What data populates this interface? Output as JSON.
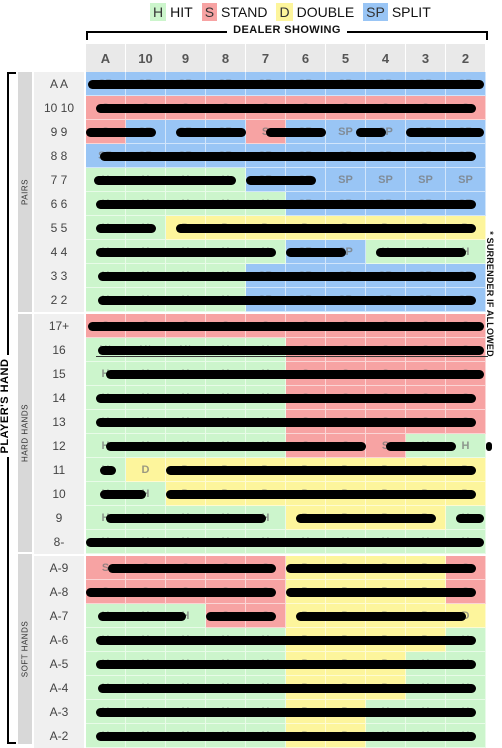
{
  "legend": [
    {
      "code": "H",
      "label": "HIT",
      "color": "#ccf5cc"
    },
    {
      "code": "S",
      "label": "STAND",
      "color": "#f7a3a3"
    },
    {
      "code": "D",
      "label": "DOUBLE",
      "color": "#fdf59c"
    },
    {
      "code": "SP",
      "label": "SPLIT",
      "color": "#99c5f5"
    }
  ],
  "dealer_title": "DEALER SHOWING",
  "dealer_cards": [
    "A",
    "10",
    "9",
    "8",
    "7",
    "6",
    "5",
    "4",
    "3",
    "2"
  ],
  "player_title": "PLAYER'S HAND",
  "groups": [
    "PAIRS",
    "HARD HANDS",
    "SOFT HANDS"
  ],
  "surrender_note": "* SURRENDER IF ALLOWED",
  "rows": [
    {
      "label": "A A",
      "cells": [
        "SP",
        "SP",
        "SP",
        "SP",
        "SP",
        "SP",
        "SP",
        "SP",
        "SP",
        "SP"
      ]
    },
    {
      "label": "10 10",
      "cells": [
        "S",
        "S",
        "S",
        "S",
        "S",
        "S",
        "S",
        "S",
        "S",
        "S"
      ]
    },
    {
      "label": "9 9",
      "cells": [
        "S",
        "SP",
        "SP",
        "SP",
        "S",
        "SP",
        "SP",
        "SP",
        "SP",
        "SP"
      ]
    },
    {
      "label": "8 8",
      "cells": [
        "SP",
        "SP",
        "SP",
        "SP",
        "SP",
        "SP",
        "SP",
        "SP",
        "SP",
        "SP"
      ]
    },
    {
      "label": "7 7",
      "cells": [
        "H",
        "H",
        "H",
        "H",
        "SP",
        "SP",
        "SP",
        "SP",
        "SP",
        "SP"
      ]
    },
    {
      "label": "6 6",
      "cells": [
        "H",
        "H",
        "H",
        "H",
        "H",
        "SP",
        "SP",
        "SP",
        "SP",
        "SP"
      ]
    },
    {
      "label": "5 5",
      "cells": [
        "H",
        "H",
        "D",
        "D",
        "D",
        "D",
        "D",
        "D",
        "D",
        "D"
      ]
    },
    {
      "label": "4 4",
      "cells": [
        "H",
        "H",
        "H",
        "H",
        "H",
        "SP",
        "SP",
        "H",
        "H",
        "H"
      ]
    },
    {
      "label": "3 3",
      "cells": [
        "H",
        "H",
        "H",
        "H",
        "SP",
        "SP",
        "SP",
        "SP",
        "SP",
        "SP"
      ]
    },
    {
      "label": "2 2",
      "cells": [
        "H",
        "H",
        "H",
        "H",
        "SP",
        "SP",
        "SP",
        "SP",
        "SP",
        "SP"
      ]
    },
    {
      "label": "17+",
      "cells": [
        "S",
        "S",
        "S",
        "S",
        "S",
        "S",
        "S",
        "S",
        "S",
        "S"
      ]
    },
    {
      "label": "16",
      "cells": [
        "H*",
        "H*",
        "H*",
        "H",
        "H",
        "S",
        "S",
        "S",
        "S",
        "S"
      ]
    },
    {
      "label": "15",
      "cells": [
        "H",
        "H",
        "H",
        "H",
        "H",
        "S",
        "S",
        "S",
        "S",
        "S"
      ]
    },
    {
      "label": "14",
      "cells": [
        "H",
        "H",
        "H",
        "H",
        "H",
        "S",
        "S",
        "S",
        "S",
        "S"
      ]
    },
    {
      "label": "13",
      "cells": [
        "H",
        "H",
        "H",
        "H",
        "H",
        "S",
        "S",
        "S",
        "S",
        "S"
      ]
    },
    {
      "label": "12",
      "cells": [
        "H",
        "H",
        "H",
        "H",
        "H",
        "S",
        "S",
        "S",
        "H",
        "H"
      ]
    },
    {
      "label": "11",
      "cells": [
        "H",
        "D",
        "D",
        "D",
        "D",
        "D",
        "D",
        "D",
        "D",
        "D"
      ]
    },
    {
      "label": "10",
      "cells": [
        "H",
        "H",
        "D",
        "D",
        "D",
        "D",
        "D",
        "D",
        "D",
        "D"
      ]
    },
    {
      "label": "9",
      "cells": [
        "H",
        "H",
        "H",
        "H",
        "H",
        "D",
        "D",
        "D",
        "D",
        "H"
      ]
    },
    {
      "label": "8-",
      "cells": [
        "H",
        "H",
        "H",
        "H",
        "H",
        "H",
        "H",
        "H",
        "H",
        "H"
      ]
    },
    {
      "label": "A-9",
      "cells": [
        "S",
        "S",
        "S",
        "S",
        "S",
        "D",
        "D",
        "D",
        "D",
        "S"
      ]
    },
    {
      "label": "A-8",
      "cells": [
        "S",
        "S",
        "S",
        "S",
        "S",
        "D",
        "D",
        "D",
        "D",
        "S"
      ]
    },
    {
      "label": "A-7",
      "cells": [
        "H",
        "H",
        "H",
        "S",
        "S",
        "D",
        "D",
        "D",
        "D",
        "D"
      ]
    },
    {
      "label": "A-6",
      "cells": [
        "H",
        "H",
        "H",
        "H",
        "H",
        "D",
        "D",
        "D",
        "D",
        "H"
      ]
    },
    {
      "label": "A-5",
      "cells": [
        "H",
        "H",
        "H",
        "H",
        "H",
        "D",
        "D",
        "D",
        "H",
        "H"
      ]
    },
    {
      "label": "A-4",
      "cells": [
        "H",
        "H",
        "H",
        "H",
        "H",
        "D",
        "D",
        "D",
        "H",
        "H"
      ]
    },
    {
      "label": "A-3",
      "cells": [
        "H",
        "H",
        "H",
        "H",
        "H",
        "D",
        "D",
        "H",
        "H",
        "H"
      ]
    },
    {
      "label": "A-2",
      "cells": [
        "H",
        "H",
        "H",
        "H",
        "H",
        "D",
        "D",
        "H",
        "H",
        "H"
      ]
    }
  ]
}
